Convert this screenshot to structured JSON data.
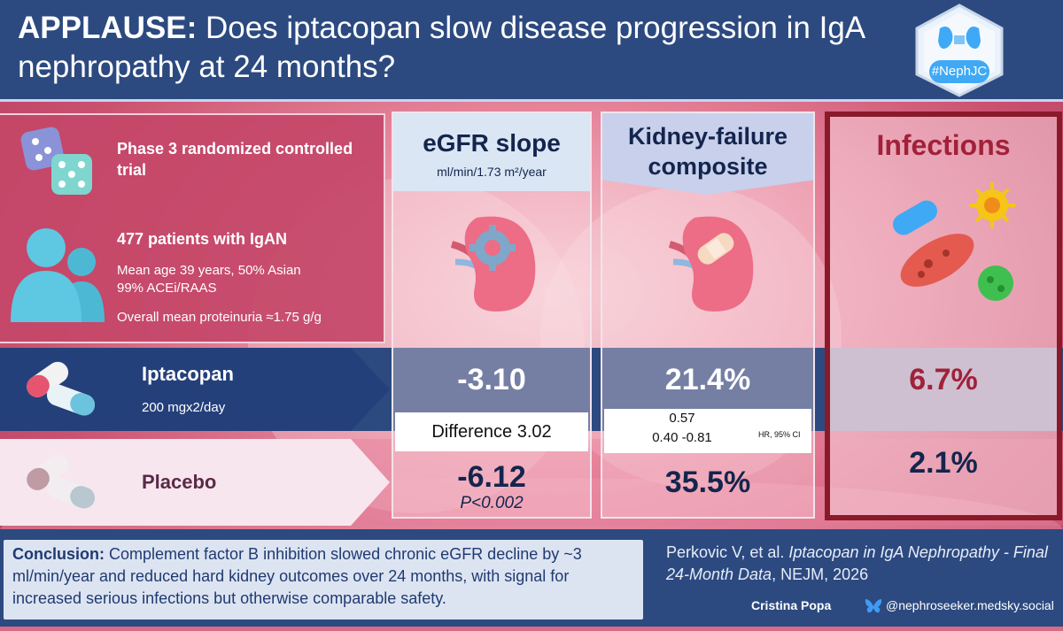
{
  "header": {
    "title_lead": "APPLAUSE:",
    "title_rest": " Does iptacopan slow disease progression in IgA nephropathy at 24 months?",
    "logo_text": "#NephJC"
  },
  "trial": {
    "design": "Phase 3 randomized controlled trial",
    "patients": "477 patients with IgAN",
    "demographics_1": "Mean age 39 years, 50% Asian",
    "demographics_2": "99% ACEi/RAAS",
    "proteinuria": "Overall mean proteinuria ≈1.75 g/g"
  },
  "arms": {
    "iptacopan_label": "Iptacopan",
    "iptacopan_dose": "200 mgx2/day",
    "placebo_label": "Placebo"
  },
  "egfr": {
    "title": "eGFR slope",
    "unit": "ml/min/1.73 m²/year",
    "iptacopan_value": "-3.10",
    "difference": "Difference 3.02",
    "placebo_value": "-6.12",
    "p_value": "P<0.002"
  },
  "kidney_failure": {
    "title_1": "Kidney-failure",
    "title_2": "composite",
    "iptacopan_value": "21.4%",
    "hr": "0.57",
    "ci": "0.40 -0.81",
    "hr_label": "HR, 95% CI",
    "placebo_value": "35.5%"
  },
  "infections": {
    "title": "Infections",
    "iptacopan_value": "6.7%",
    "placebo_value": "2.1%"
  },
  "footer": {
    "conclusion_label": "Conclusion:",
    "conclusion_text": " Complement factor B inhibition slowed chronic eGFR decline by ~3 ml/min/year and reduced hard kidney outcomes over 24 months, with signal for increased serious infections but otherwise comparable safety.",
    "ref_authors": "Perkovic V, et al. ",
    "ref_title": "Iptacopan in IgA Nephropathy - Final 24-Month Data",
    "ref_journal": ", NEJM, 2026",
    "author": "Cristina Popa",
    "handle": "@nephroseeker.medsky.social"
  },
  "colors": {
    "navy": "#2c4a80",
    "infection_red": "#a1213a",
    "text_dark": "#14254d"
  }
}
